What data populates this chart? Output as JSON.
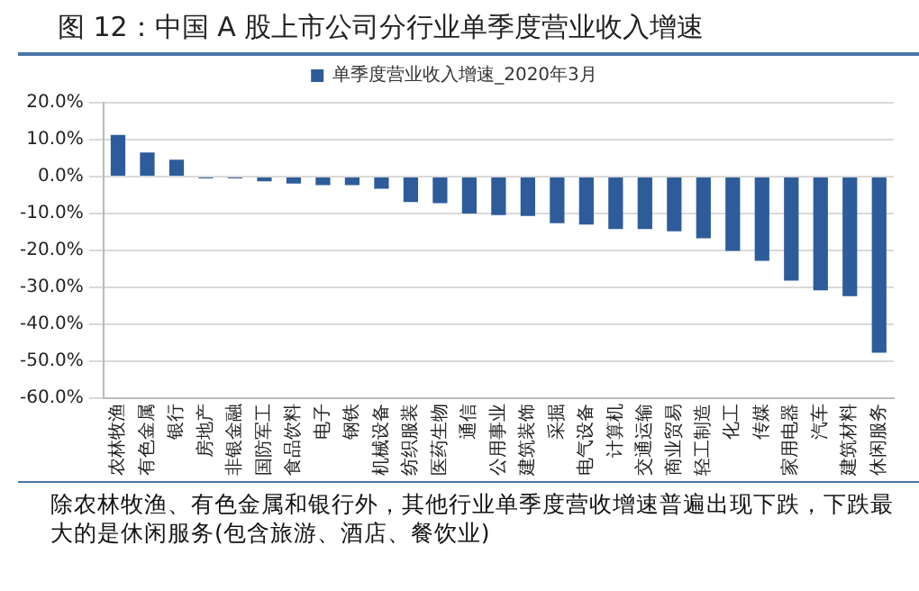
{
  "chart_data": {
    "type": "bar",
    "title": "图 12：中国 A 股上市公司分行业单季度营业收入增速",
    "categories": [
      "农林牧渔",
      "有色金属",
      "银行",
      "房地产",
      "非银金融",
      "国防军工",
      "食品饮料",
      "电子",
      "钢铁",
      "机械设备",
      "纺织服装",
      "医药生物",
      "通信",
      "公用事业",
      "建筑装饰",
      "采掘",
      "电气设备",
      "计算机",
      "交通运输",
      "商业贸易",
      "轻工制造",
      "化工",
      "传媒",
      "家用电器",
      "汽车",
      "建筑材料",
      "休闲服务"
    ],
    "series": [
      {
        "name": "单季度营业收入增速_2020年3月",
        "color": "#2e5c9a",
        "values": [
          11.3,
          6.5,
          4.6,
          -0.5,
          -0.5,
          -1.3,
          -1.9,
          -2.3,
          -2.3,
          -3.3,
          -6.9,
          -7.2,
          -10.0,
          -10.4,
          -10.7,
          -12.6,
          -13.0,
          -14.2,
          -14.2,
          -14.8,
          -16.7,
          -20.1,
          -22.8,
          -28.2,
          -30.8,
          -32.4,
          -47.7
        ]
      }
    ],
    "ylim": [
      -60,
      20
    ],
    "yticks": [
      {
        "value": -60,
        "label": "-60.0%"
      },
      {
        "value": -50,
        "label": "-50.0%"
      },
      {
        "value": -40,
        "label": "-40.0%"
      },
      {
        "value": -30,
        "label": "-30.0%"
      },
      {
        "value": -20,
        "label": "-20.0%"
      },
      {
        "value": -10,
        "label": "-10.0%"
      },
      {
        "value": 0,
        "label": "0.0%"
      },
      {
        "value": 10,
        "label": "10.0%"
      },
      {
        "value": 20,
        "label": "20.0%"
      }
    ],
    "grid": "y",
    "legend": "top",
    "annotations": [
      "除农林牧渔、有色金属和银行外，其他行业单季度营收增速普遍出现下跌，下跌最大的是休闲服务(包含旅游、酒店、餐饮业)"
    ]
  }
}
